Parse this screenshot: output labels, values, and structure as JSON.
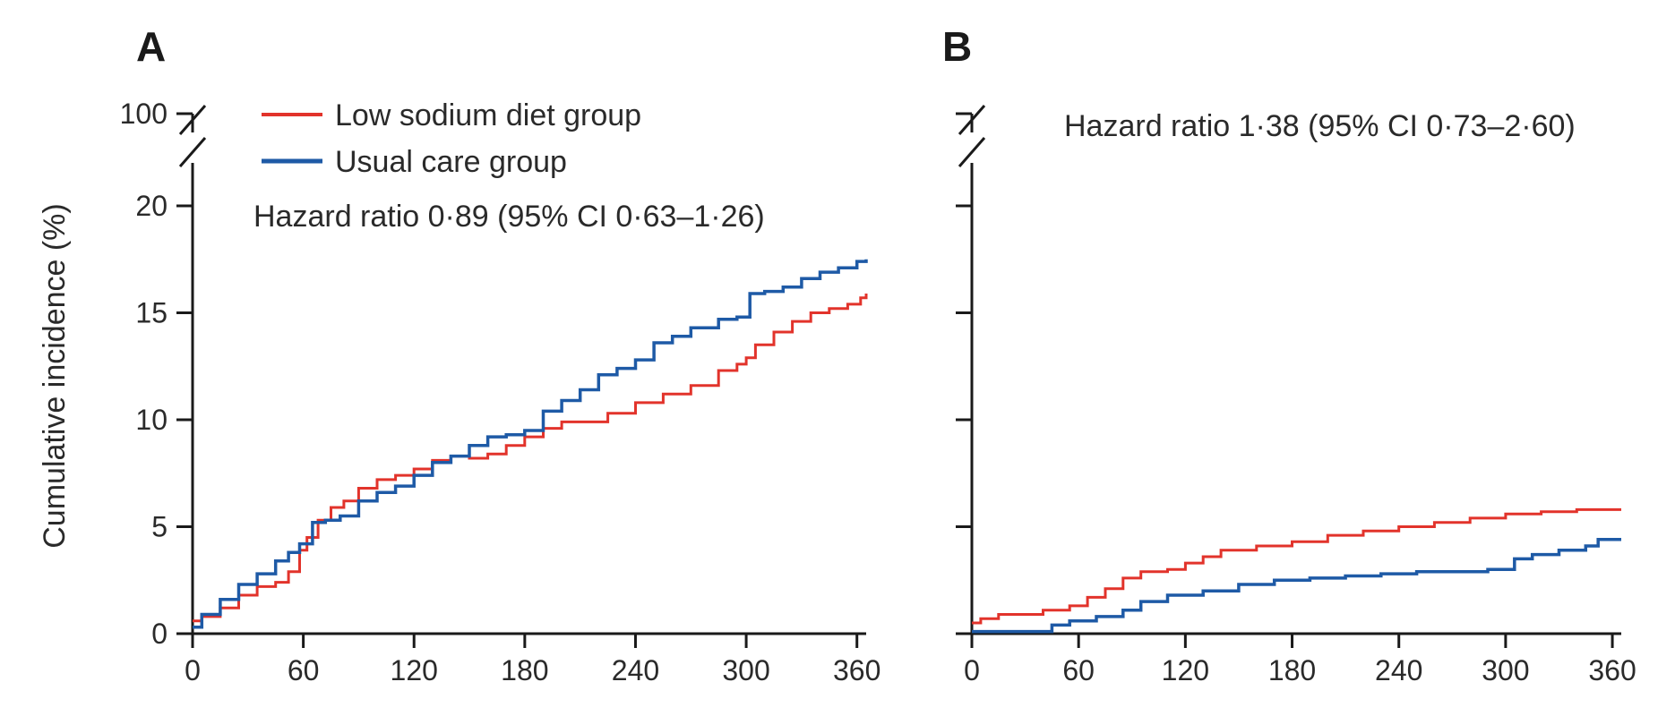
{
  "colors": {
    "low_sodium": "#e2332b",
    "usual_care": "#1e5aa6",
    "axis": "#1a1a1a"
  },
  "chart_data": [
    {
      "type": "line",
      "step": true,
      "panel": "A",
      "ylabel": "Cumulative incidence (%)",
      "xlabel": "",
      "xlim": [
        0,
        365
      ],
      "ylim": [
        0,
        20
      ],
      "y_axis_break": true,
      "y_break_top_tick": "100",
      "x_ticks": [
        "0",
        "60",
        "120",
        "180",
        "240",
        "300",
        "360"
      ],
      "y_ticks": [
        "0",
        "5",
        "10",
        "15",
        "20"
      ],
      "annotation": "Hazard ratio 0·89 (95% CI 0·63–1·26)",
      "legend": {
        "placement": "top-left",
        "entries": [
          "Low sodium diet group",
          "Usual care group"
        ]
      },
      "series": [
        {
          "name": "Low sodium diet group",
          "color": "#e2332b",
          "x": [
            0,
            5,
            15,
            25,
            35,
            45,
            52,
            58,
            62,
            68,
            75,
            82,
            90,
            100,
            110,
            120,
            130,
            140,
            150,
            160,
            170,
            180,
            190,
            200,
            210,
            225,
            240,
            255,
            270,
            285,
            295,
            300,
            305,
            315,
            325,
            335,
            345,
            355,
            362,
            365
          ],
          "y": [
            0.6,
            0.8,
            1.2,
            1.8,
            2.2,
            2.4,
            2.9,
            3.9,
            4.5,
            5.3,
            5.9,
            6.2,
            6.8,
            7.2,
            7.4,
            7.7,
            8.1,
            8.3,
            8.2,
            8.4,
            8.8,
            9.2,
            9.6,
            9.9,
            9.9,
            10.3,
            10.8,
            11.2,
            11.6,
            12.3,
            12.6,
            12.9,
            13.5,
            14.1,
            14.6,
            15.0,
            15.2,
            15.4,
            15.7,
            15.9
          ]
        },
        {
          "name": "Usual care group",
          "color": "#1e5aa6",
          "x": [
            0,
            5,
            15,
            25,
            35,
            45,
            52,
            58,
            65,
            72,
            80,
            90,
            100,
            110,
            120,
            130,
            140,
            150,
            160,
            170,
            180,
            190,
            200,
            210,
            220,
            230,
            240,
            250,
            260,
            270,
            285,
            295,
            302,
            310,
            320,
            330,
            340,
            350,
            360,
            365
          ],
          "y": [
            0.3,
            0.9,
            1.6,
            2.3,
            2.8,
            3.4,
            3.8,
            4.2,
            5.2,
            5.3,
            5.5,
            6.2,
            6.6,
            6.9,
            7.4,
            8.0,
            8.3,
            8.8,
            9.2,
            9.3,
            9.5,
            10.4,
            10.9,
            11.4,
            12.1,
            12.4,
            12.8,
            13.6,
            13.9,
            14.3,
            14.7,
            14.8,
            15.9,
            16.0,
            16.2,
            16.6,
            16.9,
            17.1,
            17.4,
            17.5
          ]
        }
      ]
    },
    {
      "type": "line",
      "step": true,
      "panel": "B",
      "ylabel": "",
      "xlabel": "",
      "xlim": [
        0,
        365
      ],
      "ylim": [
        0,
        20
      ],
      "y_axis_break": true,
      "x_ticks": [
        "0",
        "60",
        "120",
        "180",
        "240",
        "300",
        "360"
      ],
      "y_ticks": [],
      "annotation": "Hazard ratio 1·38 (95% CI 0·73–2·60)",
      "series": [
        {
          "name": "Low sodium diet group",
          "color": "#e2332b",
          "x": [
            0,
            5,
            15,
            40,
            55,
            65,
            75,
            85,
            95,
            110,
            120,
            130,
            140,
            160,
            180,
            200,
            220,
            240,
            260,
            280,
            300,
            320,
            340,
            365
          ],
          "y": [
            0.5,
            0.7,
            0.9,
            1.1,
            1.3,
            1.7,
            2.1,
            2.6,
            2.9,
            3.0,
            3.3,
            3.6,
            3.9,
            4.1,
            4.3,
            4.6,
            4.8,
            5.0,
            5.2,
            5.4,
            5.6,
            5.7,
            5.8,
            5.8
          ]
        },
        {
          "name": "Usual care group",
          "color": "#1e5aa6",
          "x": [
            0,
            40,
            45,
            55,
            70,
            85,
            95,
            110,
            130,
            150,
            170,
            190,
            210,
            230,
            250,
            270,
            290,
            305,
            315,
            330,
            345,
            352,
            365
          ],
          "y": [
            0.1,
            0.1,
            0.4,
            0.6,
            0.8,
            1.1,
            1.5,
            1.8,
            2.0,
            2.3,
            2.5,
            2.6,
            2.7,
            2.8,
            2.9,
            2.9,
            3.0,
            3.5,
            3.7,
            3.9,
            4.1,
            4.4,
            4.4
          ]
        }
      ]
    }
  ]
}
